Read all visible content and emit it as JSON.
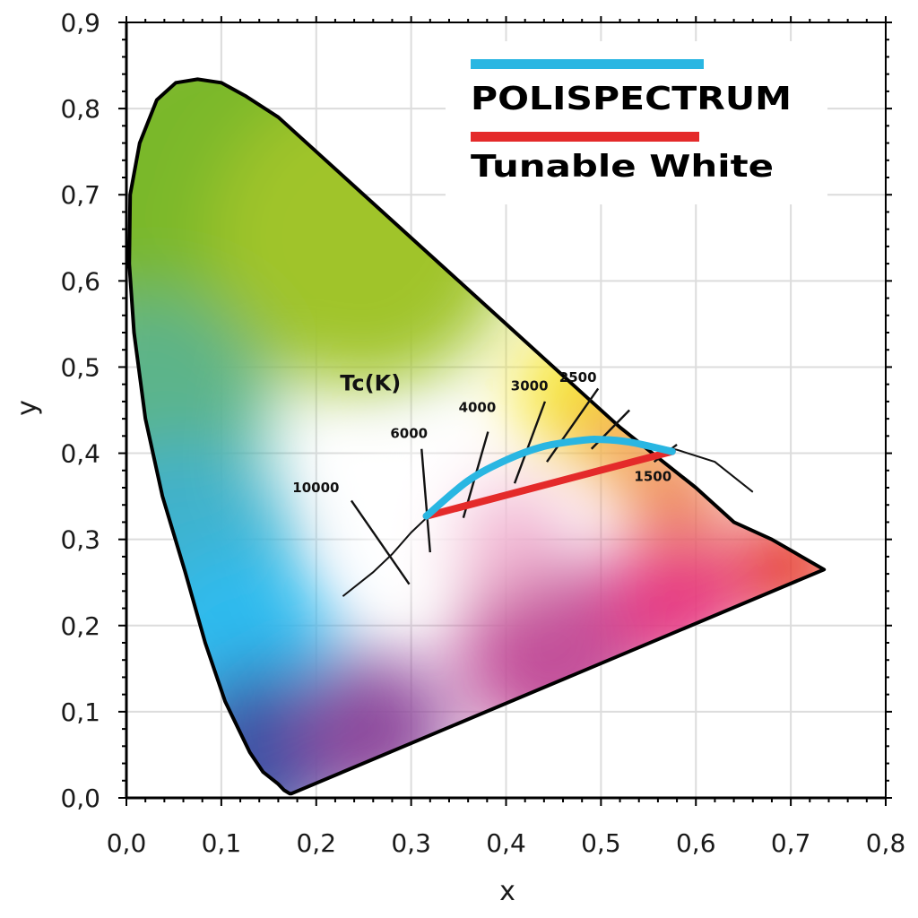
{
  "chart_data": {
    "type": "scatter",
    "title": "",
    "xlabel": "x",
    "ylabel": "y",
    "xlim": [
      0,
      0.8
    ],
    "ylim": [
      0,
      0.9
    ],
    "x_ticks": [
      "0,0",
      "0,1",
      "0,2",
      "0,3",
      "0,4",
      "0,5",
      "0,6",
      "0,7",
      "0,8"
    ],
    "y_ticks": [
      "0,0",
      "0,1",
      "0,2",
      "0,3",
      "0,4",
      "0,5",
      "0,6",
      "0,7",
      "0,8",
      "0,9"
    ],
    "grid": true,
    "legend_position": "top-right",
    "spectral_locus": [
      [
        0.174,
        0.005
      ],
      [
        0.172,
        0.005
      ],
      [
        0.166,
        0.009
      ],
      [
        0.16,
        0.016
      ],
      [
        0.144,
        0.03
      ],
      [
        0.13,
        0.053
      ],
      [
        0.104,
        0.112
      ],
      [
        0.083,
        0.18
      ],
      [
        0.062,
        0.262
      ],
      [
        0.038,
        0.35
      ],
      [
        0.02,
        0.44
      ],
      [
        0.008,
        0.54
      ],
      [
        0.003,
        0.62
      ],
      [
        0.004,
        0.7
      ],
      [
        0.014,
        0.76
      ],
      [
        0.032,
        0.81
      ],
      [
        0.052,
        0.83
      ],
      [
        0.075,
        0.834
      ],
      [
        0.1,
        0.83
      ],
      [
        0.125,
        0.815
      ],
      [
        0.16,
        0.79
      ],
      [
        0.2,
        0.75
      ],
      [
        0.24,
        0.71
      ],
      [
        0.28,
        0.67
      ],
      [
        0.32,
        0.63
      ],
      [
        0.36,
        0.59
      ],
      [
        0.4,
        0.55
      ],
      [
        0.44,
        0.51
      ],
      [
        0.48,
        0.47
      ],
      [
        0.52,
        0.43
      ],
      [
        0.56,
        0.395
      ],
      [
        0.6,
        0.36
      ],
      [
        0.64,
        0.32
      ],
      [
        0.68,
        0.3
      ],
      [
        0.735,
        0.265
      ]
    ],
    "planckian_locus": [
      [
        0.228,
        0.234
      ],
      [
        0.26,
        0.262
      ],
      [
        0.28,
        0.283
      ],
      [
        0.3,
        0.308
      ],
      [
        0.32,
        0.329
      ],
      [
        0.34,
        0.352
      ],
      [
        0.36,
        0.37
      ],
      [
        0.38,
        0.384
      ],
      [
        0.42,
        0.402
      ],
      [
        0.46,
        0.413
      ],
      [
        0.5,
        0.416
      ],
      [
        0.54,
        0.413
      ],
      [
        0.58,
        0.404
      ],
      [
        0.62,
        0.39
      ],
      [
        0.66,
        0.355
      ]
    ],
    "isotherms": [
      {
        "label": "10000",
        "from": [
          0.237,
          0.345
        ],
        "to": [
          0.298,
          0.248
        ],
        "label_at": [
          0.175,
          0.355
        ]
      },
      {
        "label": "6000",
        "from": [
          0.311,
          0.405
        ],
        "to": [
          0.32,
          0.285
        ],
        "label_at": [
          0.278,
          0.418
        ]
      },
      {
        "label": "4000",
        "from": [
          0.381,
          0.425
        ],
        "to": [
          0.355,
          0.325
        ],
        "label_at": [
          0.35,
          0.448
        ]
      },
      {
        "label": "3000",
        "from": [
          0.441,
          0.46
        ],
        "to": [
          0.409,
          0.365
        ],
        "label_at": [
          0.405,
          0.473
        ]
      },
      {
        "label": "2500",
        "from": [
          0.497,
          0.475
        ],
        "to": [
          0.443,
          0.39
        ],
        "label_at": [
          0.456,
          0.483
        ]
      },
      {
        "label": "",
        "from": [
          0.53,
          0.45
        ],
        "to": [
          0.49,
          0.405
        ]
      },
      {
        "label": "1500",
        "from": [
          0.58,
          0.41
        ],
        "to": [
          0.556,
          0.39
        ],
        "label_at": [
          0.535,
          0.368
        ]
      }
    ],
    "tc_label": "Tc(K)",
    "tc_label_at": [
      0.225,
      0.473
    ],
    "series": [
      {
        "name": "POLISPECTRUM",
        "color": "#29b6e2",
        "points": [
          [
            0.316,
            0.327
          ],
          [
            0.36,
            0.368
          ],
          [
            0.4,
            0.392
          ],
          [
            0.44,
            0.408
          ],
          [
            0.48,
            0.415
          ],
          [
            0.5,
            0.416
          ],
          [
            0.53,
            0.413
          ],
          [
            0.575,
            0.402
          ]
        ]
      },
      {
        "name": "Tunable White",
        "color": "#e42a2a",
        "points": [
          [
            0.316,
            0.327
          ],
          [
            0.575,
            0.402
          ]
        ]
      }
    ],
    "colors": {
      "outline": "#000000",
      "grid": "#dcdcdc",
      "white_point": "#ffffff",
      "green": "#7ab82a",
      "cyan_blue": "#2fbbef",
      "blue": "#3a52a5",
      "magenta": "#e6347f",
      "red": "#e63a2c",
      "yellow": "#f5e62a",
      "orange": "#f3a34a"
    }
  }
}
